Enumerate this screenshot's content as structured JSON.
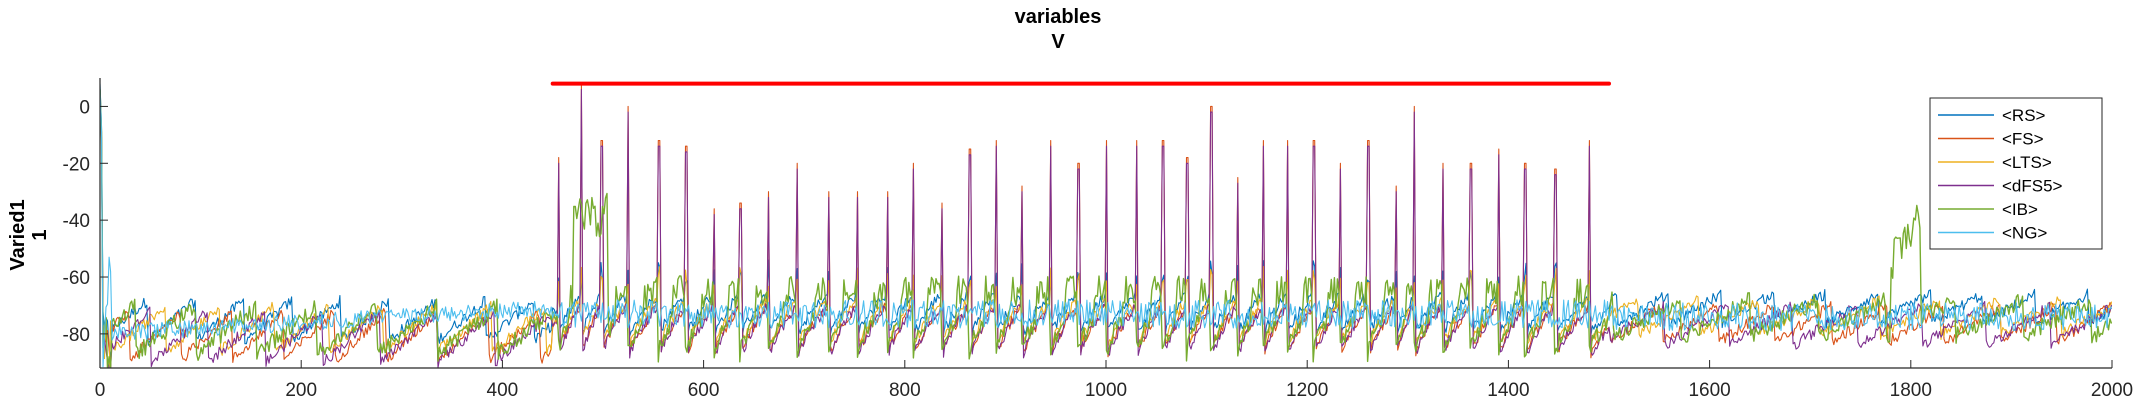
{
  "chart_data": {
    "type": "line",
    "title": "variables",
    "subtitle": "V",
    "ylabel_lines": [
      "Varied1",
      "1"
    ],
    "xlabel": "",
    "xlim": [
      0,
      2000
    ],
    "ylim": [
      -92,
      10
    ],
    "x_ticks": [
      0,
      200,
      400,
      600,
      800,
      1000,
      1200,
      1400,
      1600,
      1800,
      2000
    ],
    "y_ticks": [
      0,
      -20,
      -40,
      -60,
      -80
    ],
    "grid": false,
    "legend_position": "top-right",
    "stimulus_bar": {
      "x": [
        450,
        1500
      ],
      "y": 8,
      "color": "#ff0000"
    },
    "burst_peaks_x": [
      455,
      478,
      498,
      524,
      555,
      582,
      610,
      636,
      664,
      692,
      724,
      752,
      782,
      808,
      836,
      864,
      890,
      916,
      944,
      972,
      1000,
      1030,
      1056,
      1080,
      1104,
      1130,
      1156,
      1180,
      1206,
      1232,
      1260,
      1288,
      1306,
      1334,
      1362,
      1390,
      1416,
      1446,
      1480
    ],
    "burst_peaks_v": [
      -18,
      8,
      -12,
      0,
      -12,
      -14,
      -36,
      -34,
      -30,
      -20,
      -30,
      -30,
      -30,
      -20,
      -34,
      -15,
      -12,
      -28,
      -12,
      -20,
      -12,
      -12,
      -12,
      -18,
      0,
      -25,
      -12,
      -12,
      -12,
      -20,
      -12,
      -28,
      0,
      -20,
      -20,
      -15,
      -20,
      -22,
      -12
    ],
    "series": [
      {
        "name": "<RS>",
        "color": "#0072bd",
        "baseline": -72,
        "trough": -82,
        "noise": 2,
        "spikes": "small"
      },
      {
        "name": "<FS>",
        "color": "#d95319",
        "baseline": -76,
        "trough": -89,
        "noise": 2,
        "spikes": "peaks"
      },
      {
        "name": "<LTS>",
        "color": "#edb120",
        "baseline": -74,
        "trough": -86,
        "noise": 2,
        "spikes": "small"
      },
      {
        "name": "<dFS5>",
        "color": "#7e2f8e",
        "baseline": -76,
        "trough": -90,
        "noise": 2,
        "spikes": "peaks"
      },
      {
        "name": "<IB>",
        "color": "#77ac30",
        "baseline": -74,
        "trough": -87,
        "noise": 3,
        "spikes": "bursts"
      },
      {
        "name": "<NG>",
        "color": "#4dbeee",
        "baseline": -74,
        "trough": -80,
        "noise": 3,
        "spikes": "noisy"
      }
    ]
  }
}
